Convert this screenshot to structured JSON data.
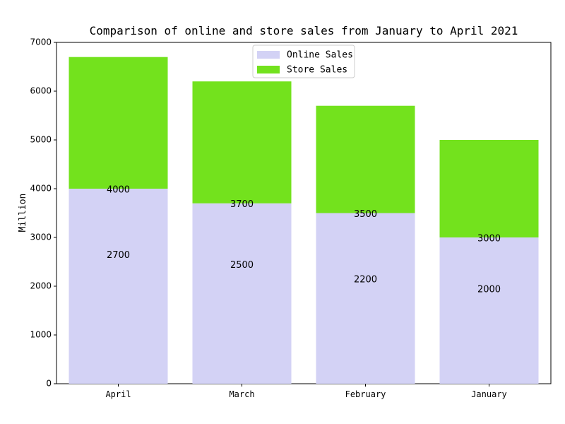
{
  "chart_data": {
    "type": "bar",
    "stacked": true,
    "title": "Comparison of online and store sales from January to April 2021",
    "xlabel": "",
    "ylabel": "Million",
    "ylim": [
      0,
      7000
    ],
    "yticks": [
      0,
      1000,
      2000,
      3000,
      4000,
      5000,
      6000,
      7000
    ],
    "categories": [
      "April",
      "March",
      "February",
      "January"
    ],
    "series": [
      {
        "name": "Online Sales",
        "values": [
          4000,
          3700,
          3500,
          3000
        ],
        "color": "#d3d2f5"
      },
      {
        "name": "Store Sales",
        "values": [
          2700,
          2500,
          2200,
          2000
        ],
        "color": "#73e21d"
      }
    ],
    "legend_position": "top-center",
    "grid": false
  }
}
